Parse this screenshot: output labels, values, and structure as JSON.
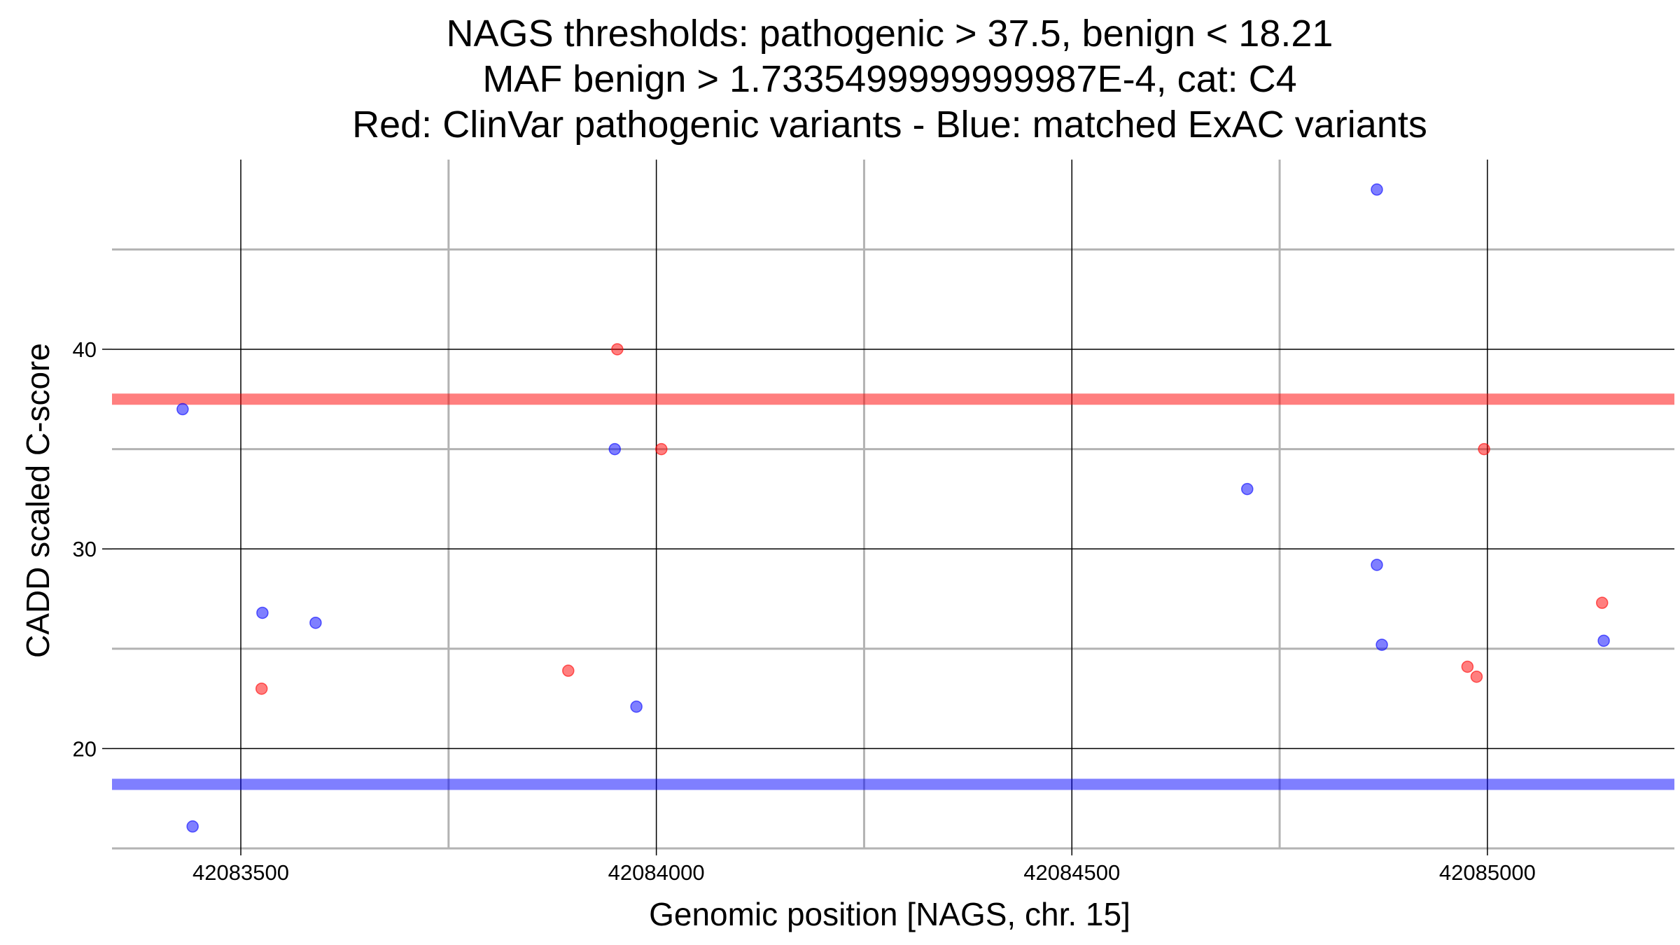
{
  "chart_data": {
    "type": "scatter",
    "title_lines": [
      "NAGS thresholds: pathogenic > 37.5, benign < 18.21",
      "MAF benign > 1.7335499999999987E-4, cat: C4",
      "Red: ClinVar pathogenic variants - Blue: matched ExAC variants"
    ],
    "xlabel": "Genomic position [NAGS, chr. 15]",
    "ylabel": "CADD scaled C-score",
    "xlim": [
      42083345,
      42085225
    ],
    "ylim": [
      15,
      49.5
    ],
    "x_major_ticks": [
      42083500,
      42084000,
      42084500,
      42085000
    ],
    "x_tick_labels": [
      "42083500",
      "42084000",
      "42084500",
      "42085000"
    ],
    "x_minor_grid": [
      42083750,
      42084250,
      42084750
    ],
    "y_major_ticks": [
      20,
      30,
      40
    ],
    "y_tick_labels": [
      "20",
      "30",
      "40"
    ],
    "y_minor_grid": [
      15,
      25,
      35,
      45
    ],
    "grid": true,
    "legend": "none",
    "thresholds": [
      {
        "name": "pathogenic",
        "y": 37.5,
        "color": "#ff0000"
      },
      {
        "name": "benign",
        "y": 18.21,
        "color": "#0000ff"
      }
    ],
    "series": [
      {
        "color": "#ff0000",
        "points": [
          {
            "x": 42083525,
            "y": 23.0
          },
          {
            "x": 42083894,
            "y": 23.9
          },
          {
            "x": 42083953,
            "y": 40.0
          },
          {
            "x": 42084006,
            "y": 35.0
          },
          {
            "x": 42084976,
            "y": 24.1
          },
          {
            "x": 42084987,
            "y": 23.6
          },
          {
            "x": 42084996,
            "y": 35.0
          },
          {
            "x": 42085138,
            "y": 27.3
          }
        ]
      },
      {
        "color": "#0000ff",
        "points": [
          {
            "x": 42083430,
            "y": 37.0
          },
          {
            "x": 42083442,
            "y": 16.1
          },
          {
            "x": 42083526,
            "y": 26.8
          },
          {
            "x": 42083590,
            "y": 26.3
          },
          {
            "x": 42083950,
            "y": 35.0
          },
          {
            "x": 42083976,
            "y": 22.1
          },
          {
            "x": 42084711,
            "y": 33.0
          },
          {
            "x": 42084867,
            "y": 48.0
          },
          {
            "x": 42084867,
            "y": 29.2
          },
          {
            "x": 42084873,
            "y": 25.2
          },
          {
            "x": 42085140,
            "y": 25.4
          }
        ]
      }
    ]
  }
}
